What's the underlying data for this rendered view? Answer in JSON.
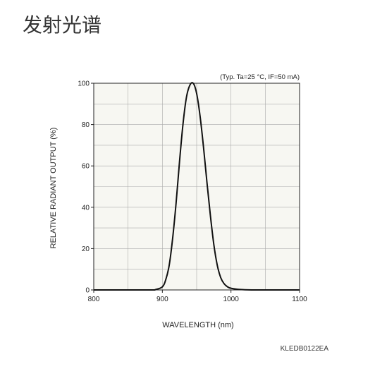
{
  "page": {
    "heading": "发射光谱"
  },
  "figure_code": "KLEDB0122EA",
  "chart_data": {
    "type": "line",
    "title": "",
    "annotation": "(Typ. Ta=25 °C, IF=50 mA)",
    "xlabel": "WAVELENGTH (nm)",
    "ylabel": "RELATIVE RADIANT OUTPUT (%)",
    "xlim": [
      800,
      1100
    ],
    "ylim": [
      0,
      100
    ],
    "x_ticks": [
      800,
      900,
      1000,
      1100
    ],
    "y_ticks": [
      0,
      20,
      40,
      60,
      80,
      100
    ],
    "grid": true,
    "series": [
      {
        "x": [
          800,
          880,
          890,
          900,
          905,
          910,
          915,
          920,
          925,
          930,
          935,
          940,
          945,
          950,
          955,
          960,
          965,
          970,
          975,
          980,
          985,
          990,
          995,
          1000,
          1010,
          1020,
          1030,
          1040,
          1050,
          1100
        ],
        "y": [
          0,
          0,
          0.2,
          1.5,
          5,
          12,
          25,
          42,
          62,
          80,
          93,
          99,
          100,
          95,
          84,
          69,
          52,
          36,
          22,
          12,
          6,
          3,
          1.5,
          0.8,
          0.3,
          0.1,
          0,
          0,
          0,
          0
        ]
      }
    ]
  }
}
